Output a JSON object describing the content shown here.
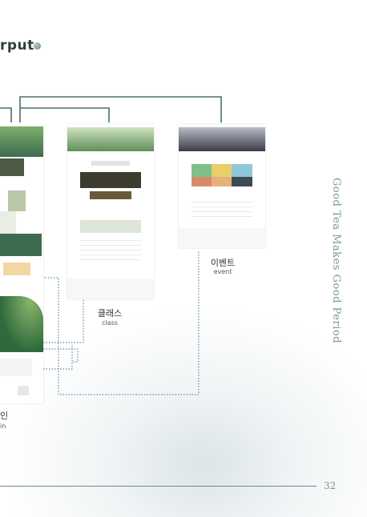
{
  "header": {
    "title": "rput"
  },
  "side": {
    "vertical_text": "Good Tea Makes Good Period"
  },
  "footer": {
    "page_number": "32"
  },
  "labels": {
    "main_ko": "인",
    "main_en": "in",
    "class_ko": "클래스",
    "class_en": "class",
    "event_ko": "이벤트",
    "event_en": "event"
  },
  "colors": {
    "line": "#4a7068",
    "dotted": "#5a8cb0",
    "green_dark": "#3d6b4f",
    "green_light": "#8fb88a"
  }
}
